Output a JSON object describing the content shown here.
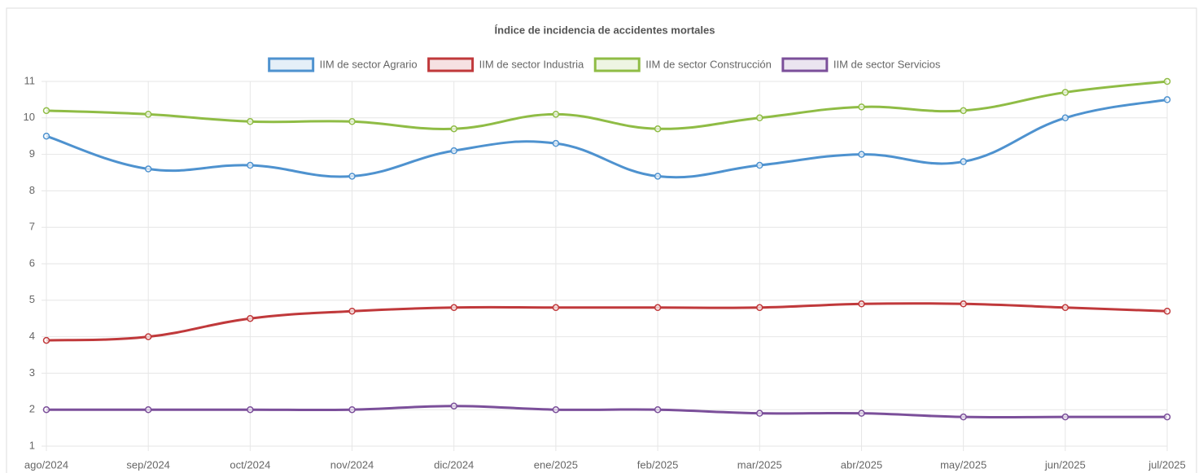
{
  "chart_data": {
    "type": "line",
    "title": "Índice de incidencia de accidentes mortales",
    "categories": [
      "ago/2024",
      "sep/2024",
      "oct/2024",
      "nov/2024",
      "dic/2024",
      "ene/2025",
      "feb/2025",
      "mar/2025",
      "abr/2025",
      "may/2025",
      "jun/2025",
      "jul/2025"
    ],
    "series": [
      {
        "name": "IIM de sector Agrario",
        "color": "#4e92cf",
        "values": [
          9.5,
          8.6,
          8.7,
          8.4,
          9.1,
          9.3,
          8.4,
          8.7,
          9.0,
          8.8,
          10.0,
          10.5
        ]
      },
      {
        "name": "IIM de sector Industria",
        "color": "#c0393b",
        "values": [
          3.9,
          4.0,
          4.5,
          4.7,
          4.8,
          4.8,
          4.8,
          4.8,
          4.9,
          4.9,
          4.8,
          4.7
        ]
      },
      {
        "name": "IIM de sector Construcción",
        "color": "#8fbc45",
        "values": [
          10.2,
          10.1,
          9.9,
          9.9,
          9.7,
          10.1,
          9.7,
          10.0,
          10.3,
          10.2,
          10.7,
          11.0
        ]
      },
      {
        "name": "IIM de sector Servicios",
        "color": "#7b4f9a",
        "values": [
          2.0,
          2.0,
          2.0,
          2.0,
          2.1,
          2.0,
          2.0,
          1.9,
          1.9,
          1.8,
          1.8,
          1.8
        ]
      }
    ],
    "ylim": [
      1,
      11
    ],
    "yticks": [
      1,
      2,
      3,
      4,
      5,
      6,
      7,
      8,
      9,
      10,
      11
    ],
    "grid": true,
    "legend": "top"
  }
}
